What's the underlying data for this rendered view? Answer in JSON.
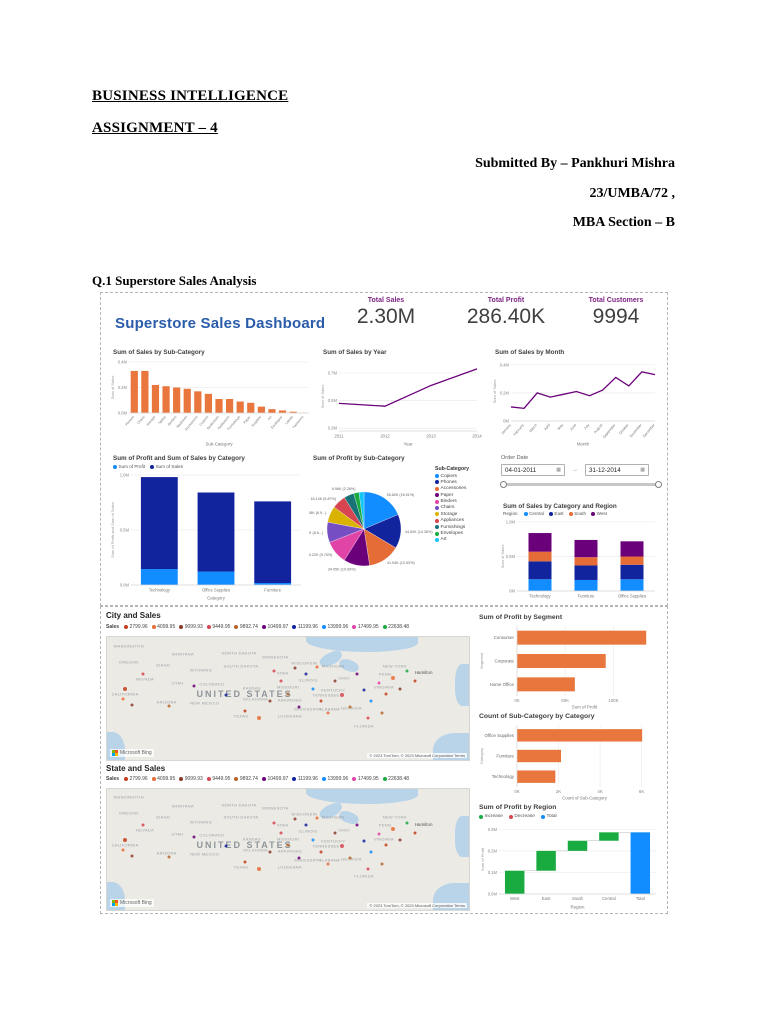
{
  "document": {
    "title_line1": "BUSINESS INTELLIGENCE",
    "title_line2": "ASSIGNMENT – 4",
    "byline_1": "Submitted By – Pankhuri Mishra",
    "byline_2": "23/UMBA/72 ,",
    "byline_3": "MBA Section – B",
    "q1_heading": "Q.1 Superstore Sales Analysis"
  },
  "dashboard1": {
    "title": "Superstore Sales Dashboard",
    "kpis": [
      {
        "label": "Total Sales",
        "value": "2.30M"
      },
      {
        "label": "Total Profit",
        "value": "286.40K"
      },
      {
        "label": "Total Customers",
        "value": "9994"
      }
    ],
    "slicer": {
      "label": "Order Date",
      "start": "04-01-2011",
      "end": "31-12-2014"
    }
  },
  "dashboard2": {
    "city_title": "City and Sales",
    "state_title": "State and Sales",
    "sales_legend_label": "Sales",
    "sales_legend_values": [
      "2799.96",
      "4099.95",
      "9099.93",
      "9449.95",
      "9892.74",
      "10499.97",
      "11199.96",
      "13999.96",
      "17499.95",
      "22638.48"
    ],
    "map": {
      "country_label": "UNITED STATES",
      "city_label": "Hamilton",
      "logo_text": "Microsoft Bing",
      "attribution": "© 2023 TomTom, © 2023 Microsoft Corporation  Terms",
      "state_labels": [
        "WASHINGTON",
        "MONTANA",
        "NORTH DAKOTA",
        "MINNESOTA",
        "WISCONSIN",
        "MICHIGAN",
        "NEW YORK",
        "OREGON",
        "IDAHO",
        "WYOMING",
        "SOUTH DAKOTA",
        "IOWA",
        "ILLINOIS",
        "OHIO",
        "PENN.",
        "NEVADA",
        "UTAH",
        "COLORADO",
        "KANSAS",
        "MISSOURI",
        "KENTUCKY",
        "VIRGINIA",
        "CALIFORNIA",
        "OKLAHOMA",
        "ARKANSAS",
        "TENNESSEE",
        "ARIZONA",
        "NEW MEXICO",
        "MISSISSIPPI",
        "ALABAMA",
        "GEORGIA",
        "TEXAS",
        "LOUISIANA",
        "FLORIDA"
      ]
    }
  },
  "chart_data": [
    {
      "id": "subcat_sales",
      "type": "bar",
      "title": "Sum of Sales by Sub-Category",
      "xlabel": "Sub-Category",
      "ylabel": "Sum of Sales",
      "ylim": [
        0,
        0.4
      ],
      "yticks": [
        {
          "v": 0,
          "label": "0.0M"
        },
        {
          "v": 0.2,
          "label": "0.2M"
        },
        {
          "v": 0.4,
          "label": "0.4M"
        }
      ],
      "color": "#E8763D",
      "categories": [
        "Phones",
        "Chairs",
        "Storage",
        "Tables",
        "Binders",
        "Machines",
        "Accessories",
        "Copiers",
        "Bookcases",
        "Appliances",
        "Furnishings",
        "Paper",
        "Supplies",
        "Art",
        "Envelopes",
        "Labels",
        "Fasteners"
      ],
      "values": [
        0.33,
        0.33,
        0.22,
        0.21,
        0.2,
        0.19,
        0.17,
        0.15,
        0.11,
        0.11,
        0.09,
        0.08,
        0.05,
        0.03,
        0.02,
        0.01,
        0.003
      ]
    },
    {
      "id": "sales_year",
      "type": "line",
      "title": "Sum of Sales by Year",
      "xlabel": "Year",
      "ylabel": "Sum of Sales",
      "ylim": [
        0.28,
        0.78
      ],
      "yticks": [
        {
          "v": 0.3,
          "label": "0.3M"
        },
        {
          "v": 0.5,
          "label": "0.5M"
        },
        {
          "v": 0.7,
          "label": "0.7M"
        }
      ],
      "color": "#6B007B",
      "categories": [
        "2011",
        "2012",
        "2013",
        "2014"
      ],
      "values": [
        0.48,
        0.46,
        0.61,
        0.73
      ]
    },
    {
      "id": "sales_month",
      "type": "line",
      "title": "Sum of Sales by Month",
      "xlabel": "Month",
      "ylabel": "Sum of Sales",
      "ylim": [
        0,
        0.42
      ],
      "yticks": [
        {
          "v": 0,
          "label": "0M"
        },
        {
          "v": 0.2,
          "label": "0.2M"
        },
        {
          "v": 0.4,
          "label": "0.4M"
        }
      ],
      "color": "#6B007B",
      "categories": [
        "January",
        "February",
        "March",
        "April",
        "May",
        "June",
        "July",
        "August",
        "September",
        "October",
        "November",
        "December"
      ],
      "values": [
        0.1,
        0.09,
        0.2,
        0.17,
        0.19,
        0.21,
        0.18,
        0.22,
        0.31,
        0.25,
        0.35,
        0.33
      ]
    },
    {
      "id": "cat_profit_sales",
      "type": "stackbar",
      "title": "Sum of Profit and Sum of Sales by Category",
      "xlabel": "Category",
      "ylabel": "Sum of Profit and Sum of Sales",
      "ylim": [
        0,
        1.0
      ],
      "yticks": [
        {
          "v": 0,
          "label": "0.0M"
        },
        {
          "v": 0.5,
          "label": "0.5M"
        },
        {
          "v": 1.0,
          "label": "1.0M"
        }
      ],
      "categories": [
        "Technology",
        "Office Supplies",
        "Furniture"
      ],
      "series": [
        {
          "name": "Sum of Profit",
          "color": "#118DFF",
          "values": [
            0.145,
            0.122,
            0.018
          ]
        },
        {
          "name": "Sum of Sales",
          "color": "#12239E",
          "values": [
            0.836,
            0.719,
            0.742
          ]
        }
      ]
    },
    {
      "id": "profit_subcat_pie",
      "type": "pie",
      "title": "Sum of Profit by Sub-Category",
      "legend_title": "Sub-Category",
      "slices": [
        {
          "name": "Copiers",
          "value": 55.82,
          "color": "#118DFF",
          "label": "55.82K (18.01%)"
        },
        {
          "name": "Phones",
          "value": 44.52,
          "color": "#12239E",
          "label": "44.52K (14.36%)"
        },
        {
          "name": "Accessories",
          "value": 41.94,
          "color": "#E66C37",
          "label": "41.94K (13.53%)"
        },
        {
          "name": "Paper",
          "value": 34.05,
          "color": "#6B007B",
          "label": "34.05K (10.99%)"
        },
        {
          "name": "Binders",
          "value": 30.22,
          "color": "#E044A7",
          "label": "30.22K (9.75%)"
        },
        {
          "name": "Chairs",
          "value": 26.58,
          "color": "#744EC2",
          "label": "26.58K (8.6...)"
        },
        {
          "name": "Storage",
          "value": 21.28,
          "color": "#D9B300",
          "label": "21.28K (6.9...)"
        },
        {
          "name": "Appliances",
          "value": 18.14,
          "color": "#D64550",
          "label": "18.14K (5.87%)"
        },
        {
          "name": "Furnishings",
          "value": 13.06,
          "color": "#197278",
          "label": ""
        },
        {
          "name": "Envelopes",
          "value": 6.96,
          "color": "#1AAB40",
          "label": "6.96K (2.26%)"
        },
        {
          "name": "Art",
          "value": 6.53,
          "color": "#15C6F4",
          "label": ""
        }
      ]
    },
    {
      "id": "cat_region",
      "type": "stackbar",
      "title": "Sum of Sales by Category and Region",
      "xlabel": "",
      "ylabel": "Sum of Sales",
      "legend_title": "Region",
      "ylim": [
        0,
        1.0
      ],
      "yticks": [
        {
          "v": 0,
          "label": "0M"
        },
        {
          "v": 0.5,
          "label": "0.5M"
        },
        {
          "v": 1.0,
          "label": "1.0M"
        }
      ],
      "categories": [
        "Technology",
        "Furniture",
        "Office Supplies"
      ],
      "series": [
        {
          "name": "Central",
          "color": "#118DFF",
          "values": [
            0.17,
            0.16,
            0.17
          ]
        },
        {
          "name": "East",
          "color": "#12239E",
          "values": [
            0.26,
            0.21,
            0.21
          ]
        },
        {
          "name": "South",
          "color": "#E66C37",
          "values": [
            0.14,
            0.12,
            0.12
          ]
        },
        {
          "name": "West",
          "color": "#6B007B",
          "values": [
            0.27,
            0.25,
            0.22
          ]
        }
      ]
    },
    {
      "id": "segment_profit",
      "type": "hbar",
      "title": "Sum of Profit by Segment",
      "xlabel": "Sum of Profit",
      "ylabel": "Segment",
      "xlim": [
        0,
        140
      ],
      "xticks": [
        {
          "v": 0,
          "label": "0K"
        },
        {
          "v": 50,
          "label": "50K"
        },
        {
          "v": 100,
          "label": "100K"
        }
      ],
      "color": "#E8763D",
      "categories": [
        "Consumer",
        "Corporate",
        "Home Office"
      ],
      "values": [
        134,
        92,
        60
      ]
    },
    {
      "id": "subcat_count",
      "type": "hbar",
      "title": "Count of Sub-Category by Category",
      "xlabel": "Count of Sub-Category",
      "ylabel": "Category",
      "xlim": [
        0,
        6500
      ],
      "xticks": [
        {
          "v": 0,
          "label": "0K"
        },
        {
          "v": 2000,
          "label": "2K"
        },
        {
          "v": 4000,
          "label": "4K"
        },
        {
          "v": 6000,
          "label": "6K"
        }
      ],
      "color": "#E8763D",
      "categories": [
        "Office Supplies",
        "Furniture",
        "Technology"
      ],
      "values": [
        6026,
        2121,
        1847
      ]
    },
    {
      "id": "region_profit",
      "type": "waterfall",
      "title": "Sum of Profit by Region",
      "xlabel": "Region",
      "ylabel": "Sum of Profit",
      "ylim": [
        0,
        0.32
      ],
      "yticks": [
        {
          "v": 0,
          "label": "0.0M"
        },
        {
          "v": 0.1,
          "label": "0.1M"
        },
        {
          "v": 0.2,
          "label": "0.2M"
        },
        {
          "v": 0.3,
          "label": "0.3M"
        }
      ],
      "categories": [
        "West",
        "East",
        "South",
        "Central",
        "Total"
      ],
      "values": [
        0.108,
        0.092,
        0.047,
        0.039
      ],
      "total": 0.286,
      "colors": {
        "increase": "#1AAB40",
        "decrease": "#D64550",
        "total": "#118DFF"
      },
      "legend": [
        {
          "label": "Increase",
          "color": "#1AAB40"
        },
        {
          "label": "Decrease",
          "color": "#D64550"
        },
        {
          "label": "Total",
          "color": "#118DFF"
        }
      ]
    }
  ]
}
